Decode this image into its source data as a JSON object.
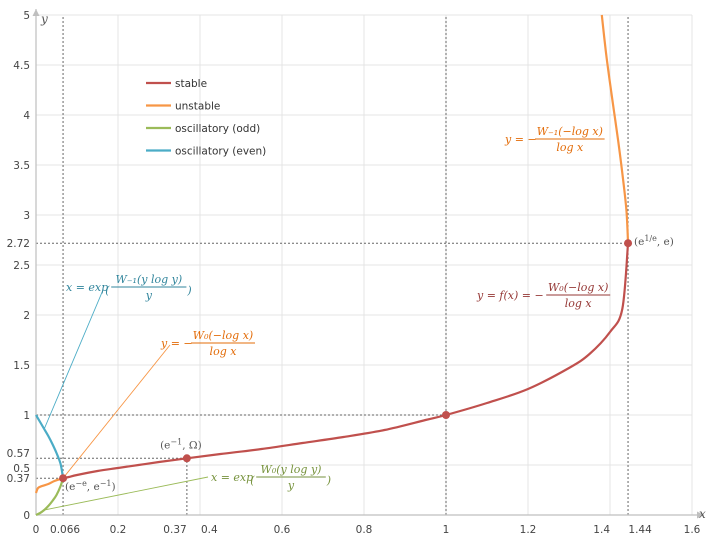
{
  "chart_data": {
    "type": "line",
    "xlabel": "x",
    "ylabel": "y",
    "xlim": [
      0,
      1.6
    ],
    "ylim": [
      0,
      5
    ],
    "grid": true,
    "legend_position": "top-left",
    "x_ticks": [
      {
        "v": 0,
        "label": "0"
      },
      {
        "v": 0.066,
        "label": "0.066"
      },
      {
        "v": 0.2,
        "label": "0.2"
      },
      {
        "v": 0.37,
        "label": "0.37"
      },
      {
        "v": 0.4,
        "label": "0.4"
      },
      {
        "v": 0.6,
        "label": "0.6"
      },
      {
        "v": 0.8,
        "label": "0.8"
      },
      {
        "v": 1.0,
        "label": "1"
      },
      {
        "v": 1.2,
        "label": "1.2"
      },
      {
        "v": 1.4,
        "label": "1.4"
      },
      {
        "v": 1.44,
        "label": "1.44"
      },
      {
        "v": 1.6,
        "label": "1.6"
      }
    ],
    "y_ticks": [
      {
        "v": 0,
        "label": "0"
      },
      {
        "v": 0.37,
        "label": "0.37"
      },
      {
        "v": 0.5,
        "label": "0.5"
      },
      {
        "v": 0.57,
        "label": "0.57"
      },
      {
        "v": 1,
        "label": "1"
      },
      {
        "v": 1.5,
        "label": "1.5"
      },
      {
        "v": 2,
        "label": "2"
      },
      {
        "v": 2.5,
        "label": "2.5"
      },
      {
        "v": 2.72,
        "label": "2.72"
      },
      {
        "v": 3,
        "label": "3"
      },
      {
        "v": 3.5,
        "label": "3.5"
      },
      {
        "v": 4,
        "label": "4"
      },
      {
        "v": 4.5,
        "label": "4.5"
      },
      {
        "v": 5,
        "label": "5"
      }
    ],
    "series": [
      {
        "name": "stable",
        "color": "#c0504d",
        "x": [
          0.066,
          0.08,
          0.1,
          0.15,
          0.2,
          0.25,
          0.3,
          0.368,
          0.45,
          0.55,
          0.65,
          0.75,
          0.85,
          0.95,
          1.0,
          1.1,
          1.2,
          1.3,
          1.35,
          1.4,
          1.43,
          1.444
        ],
        "y": [
          0.368,
          0.38,
          0.4,
          0.44,
          0.47,
          0.5,
          0.53,
          0.567,
          0.61,
          0.66,
          0.72,
          0.78,
          0.85,
          0.95,
          1.0,
          1.12,
          1.26,
          1.47,
          1.61,
          1.83,
          2.06,
          2.718
        ]
      },
      {
        "name": "unstable",
        "color": "#f79646",
        "x": [
          1.444,
          1.44,
          1.43,
          1.42,
          1.41,
          1.4,
          1.39,
          1.38
        ],
        "y": [
          2.718,
          3.05,
          3.42,
          3.74,
          4.03,
          4.32,
          4.63,
          5.0
        ]
      },
      {
        "name": "unstable",
        "color": "#f79646",
        "x": [
          0.0,
          0.005,
          0.015,
          0.03,
          0.045,
          0.066
        ],
        "y": [
          0.22,
          0.27,
          0.29,
          0.31,
          0.34,
          0.368
        ]
      },
      {
        "name": "oscillatory (odd)",
        "color": "#9bbb59",
        "x": [
          0.0,
          0.01,
          0.02,
          0.03,
          0.04,
          0.05,
          0.06,
          0.066
        ],
        "y": [
          0.0,
          0.02,
          0.05,
          0.09,
          0.14,
          0.2,
          0.29,
          0.368
        ]
      },
      {
        "name": "oscillatory (even)",
        "color": "#4bacc6",
        "x": [
          0.0,
          0.01,
          0.02,
          0.03,
          0.04,
          0.05,
          0.06,
          0.066
        ],
        "y": [
          1.0,
          0.93,
          0.86,
          0.79,
          0.71,
          0.62,
          0.51,
          0.368
        ]
      }
    ],
    "points": [
      {
        "x": 0.066,
        "y": 0.368,
        "label": "(e^{−e}, e^{−1})"
      },
      {
        "x": 0.368,
        "y": 0.567,
        "label": "(e^{−1}, Ω)"
      },
      {
        "x": 1.0,
        "y": 1.0,
        "label": ""
      },
      {
        "x": 1.444,
        "y": 2.718,
        "label": "(e^{1/e}, e)"
      }
    ],
    "dotted_guides": [
      {
        "x": 0.066,
        "y": 0.368
      },
      {
        "x": 0.368,
        "y": 0.567
      },
      {
        "x": 1.0,
        "y": 1.0
      },
      {
        "x": 1.444,
        "y": 2.718
      }
    ],
    "annotations": [
      {
        "text": "y = −W₋₁(−log x) / log x",
        "color": "#e36c09"
      },
      {
        "text": "y = f(x) = −W₀(−log x) / log x",
        "color": "#953735"
      },
      {
        "text": "x = exp(W₋₁(y log y) / y)",
        "color": "#31859c"
      },
      {
        "text": "y = −W₀(−log x) / log x",
        "color": "#e36c09"
      },
      {
        "text": "x = exp(W₀(y log y) / y)",
        "color": "#76923c"
      }
    ]
  }
}
